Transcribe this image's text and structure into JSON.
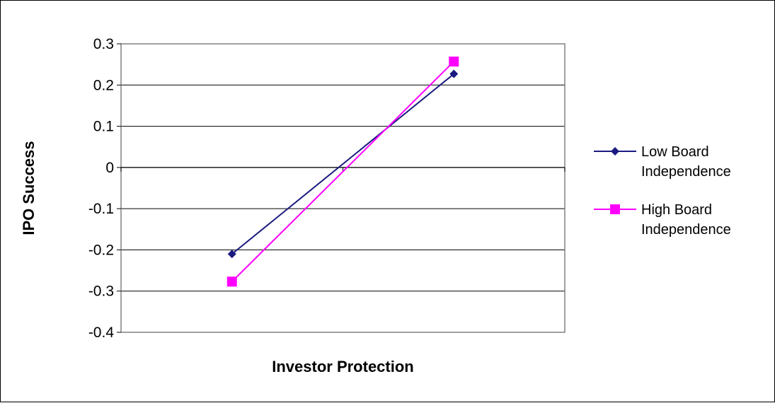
{
  "chart_data": {
    "type": "line",
    "categories": [
      "Low",
      "High"
    ],
    "show_category_labels": false,
    "xlabel": "Investor Protection",
    "ylabel": "IPO Success",
    "ylim": [
      -0.4,
      0.3
    ],
    "yticks": [
      0.3,
      0.2,
      0.1,
      0,
      -0.1,
      -0.2,
      -0.3,
      -0.4
    ],
    "ytick_labels": [
      "0.3",
      "0.2",
      "0.1",
      "0",
      "-0.1",
      "-0.2",
      "-0.3",
      "-0.4"
    ],
    "grid": true,
    "legend_position": "right",
    "series": [
      {
        "name_lines": [
          "Low Board",
          "Independence"
        ],
        "values": [
          -0.21,
          0.227
        ],
        "color": "#1a1a80",
        "marker": "diamond"
      },
      {
        "name_lines": [
          "High Board",
          "Independence"
        ],
        "values": [
          -0.277,
          0.257
        ],
        "color": "#ff00ff",
        "marker": "square"
      }
    ]
  }
}
